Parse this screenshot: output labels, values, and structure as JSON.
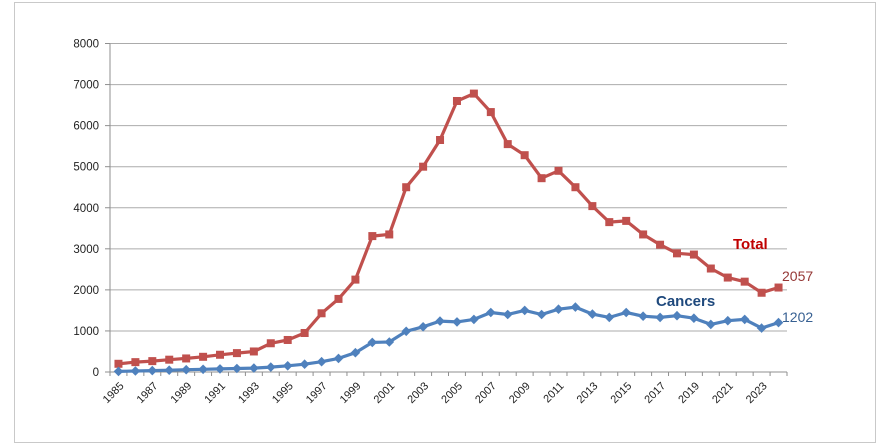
{
  "chart_data": {
    "type": "line",
    "title": "",
    "x": [
      1985,
      1986,
      1987,
      1988,
      1989,
      1990,
      1991,
      1992,
      1993,
      1994,
      1995,
      1996,
      1997,
      1998,
      1999,
      2000,
      2001,
      2002,
      2003,
      2004,
      2005,
      2006,
      2007,
      2008,
      2009,
      2010,
      2011,
      2012,
      2013,
      2014,
      2015,
      2016,
      2017,
      2018,
      2019,
      2020,
      2021,
      2022,
      2023,
      2024
    ],
    "x_tick_labels": [
      "1985",
      "1987",
      "1989",
      "1991",
      "1993",
      "1995",
      "1997",
      "1999",
      "2001",
      "2003",
      "2005",
      "2007",
      "2009",
      "2011",
      "2013",
      "2015",
      "2017",
      "2019",
      "2021",
      "2023"
    ],
    "y_tick_labels": [
      "0",
      "1000",
      "2000",
      "3000",
      "4000",
      "5000",
      "6000",
      "7000",
      "8000"
    ],
    "ylim": [
      0,
      8000
    ],
    "y_tick_step": 1000,
    "grid": true,
    "legend_position": "inline-end-labels",
    "series": [
      {
        "name": "Total",
        "marker": "square",
        "color": "#C0504D",
        "name_label_color": "#C00000",
        "end_label": "2057",
        "end_label_color": "#953735",
        "values": [
          200,
          240,
          265,
          300,
          330,
          370,
          420,
          460,
          500,
          700,
          780,
          950,
          1430,
          1780,
          2250,
          3310,
          3350,
          4500,
          5000,
          5650,
          6600,
          6780,
          6330,
          5550,
          5280,
          4720,
          4900,
          4500,
          4040,
          3650,
          3680,
          3350,
          3100,
          2890,
          2860,
          2520,
          2300,
          2200,
          1930,
          2057
        ]
      },
      {
        "name": "Cancers",
        "marker": "diamond",
        "color": "#4F81BD",
        "name_label_color": "#1F497D",
        "end_label": "1202",
        "end_label_color": "#376092",
        "values": [
          15,
          25,
          35,
          45,
          55,
          65,
          75,
          85,
          95,
          120,
          150,
          190,
          250,
          330,
          470,
          720,
          730,
          990,
          1100,
          1240,
          1220,
          1280,
          1450,
          1400,
          1500,
          1400,
          1530,
          1580,
          1410,
          1330,
          1450,
          1360,
          1330,
          1370,
          1310,
          1160,
          1250,
          1280,
          1070,
          1202
        ]
      }
    ]
  },
  "axis_style": {
    "grid_color": "#ABABAB",
    "axis_color": "#8F8F8F",
    "tick_label_color": "#1F1F1F"
  },
  "frame": {
    "border_color": "#C9C9C9",
    "background": "#FFFFFF"
  }
}
